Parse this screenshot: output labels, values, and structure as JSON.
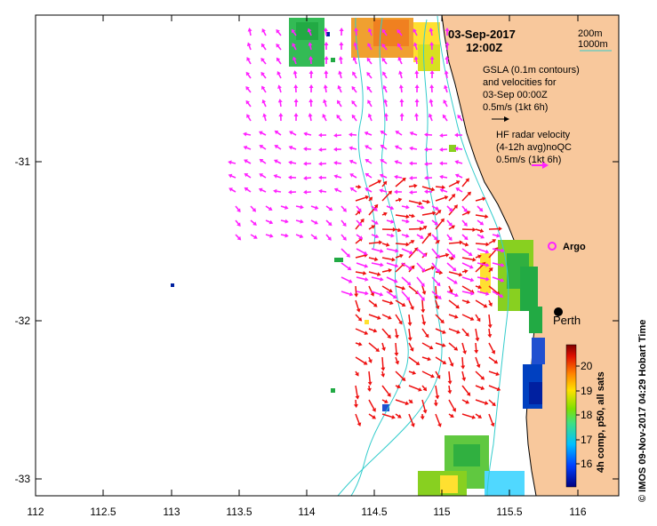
{
  "header": {
    "date": "03-Sep-2017",
    "time": "12:00Z"
  },
  "contour_legend": {
    "line1": "200m",
    "line2": "1000m",
    "color": "#33cccc"
  },
  "gsla_legend": {
    "line1": "GSLA (0.1m contours)",
    "line2": "and velocities for",
    "line3": "03-Sep 00:00Z",
    "line4": "0.5m/s (1kt 6h)"
  },
  "hf_legend": {
    "line1": "HF radar velocity",
    "line2": "(4-12h avg)noQC",
    "line3": "0.5m/s (1kt 6h)",
    "color": "#ff33ff"
  },
  "markers": {
    "argo_label": "Argo",
    "perth_label": "Perth"
  },
  "axes": {
    "x_ticks": [
      "112",
      "112.5",
      "113",
      "113.5",
      "114",
      "114.5",
      "115",
      "115.5",
      "116"
    ],
    "y_ticks": [
      "-31",
      "-32",
      "-33"
    ]
  },
  "colorbar": {
    "ticks": [
      "20",
      "19",
      "18",
      "17",
      "16"
    ],
    "label": "4h comp, p50, all sats"
  },
  "credit": "© IMOS 09-Nov-2017 04:29 Hobart Time",
  "colors": {
    "land": "#f8c89c",
    "current_arrows": "#ee1111",
    "hf_arrows": "#ff22ff"
  }
}
